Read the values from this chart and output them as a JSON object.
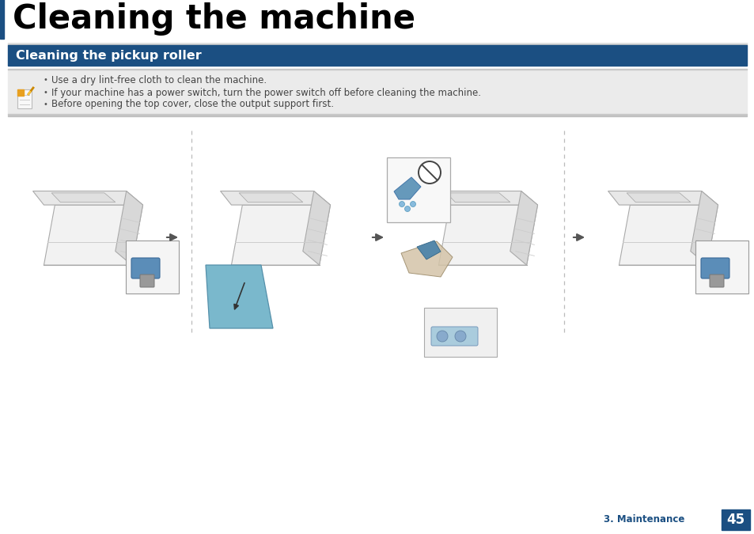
{
  "title": "Cleaning the machine",
  "section_title": "Cleaning the pickup roller",
  "bullet_points": [
    "Use a dry lint-free cloth to clean the machine.",
    "If your machine has a power switch, turn the power switch off before cleaning the machine.",
    "Before opening the top cover, close the output support first."
  ],
  "footer_section": "3. Maintenance",
  "page_number": "45",
  "title_color": "#000000",
  "section_bg_color": "#1b4f82",
  "section_text_color": "#ffffff",
  "note_bg_color": "#ebebeb",
  "note_top_color": "#d8d8d8",
  "note_bottom_color": "#d8d8d8",
  "footer_section_color": "#1b4f82",
  "page_bg": "#ffffff",
  "left_accent_color": "#1b4f82",
  "bullet_text_color": "#444444",
  "printer_body_color": "#f0f0f0",
  "printer_edge_color": "#aaaaaa",
  "printer_dark_color": "#888888",
  "arrow_color": "#555555",
  "tray_fill": "#7ab0c8",
  "detail_box_color": "#f5f5f5",
  "roller_color": "#6699bb"
}
